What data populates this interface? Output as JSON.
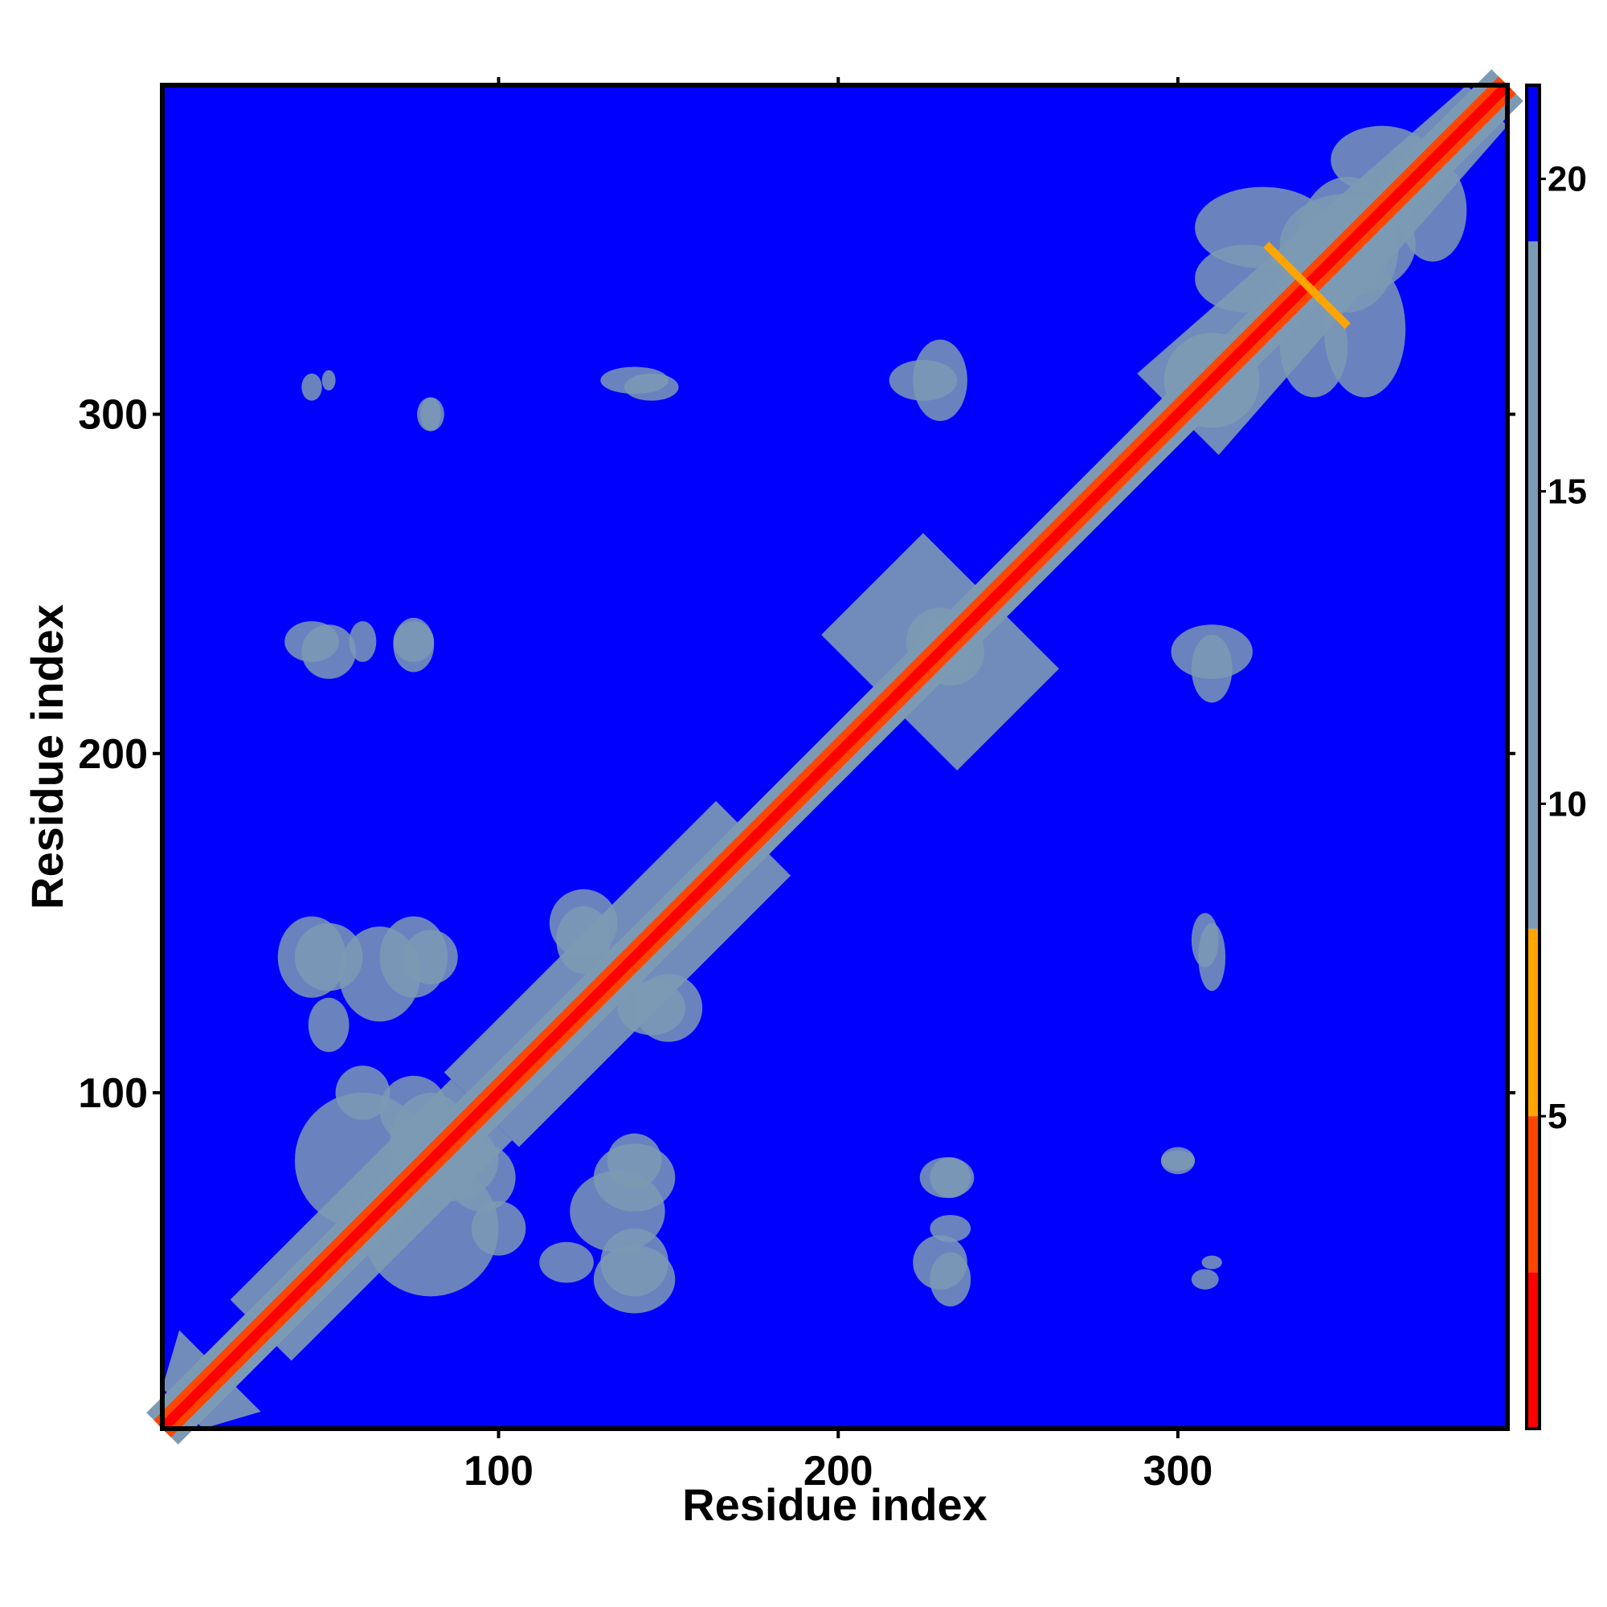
{
  "chart_data": {
    "type": "heatmap",
    "title": "",
    "xlabel": "Residue index",
    "ylabel": "Residue index",
    "xlim": [
      1,
      397
    ],
    "ylim": [
      1,
      397
    ],
    "x_ticks": [
      100,
      200,
      300
    ],
    "y_ticks": [
      100,
      200,
      300
    ],
    "grid": false,
    "colorbar": {
      "range": [
        0,
        21.5
      ],
      "ticks": [
        5,
        10,
        15,
        20
      ],
      "position": "right",
      "colors": [
        "#ff0000",
        "#ff4500",
        "#ffa500",
        "#7d9ab4",
        "#0000ff"
      ]
    },
    "background_value": 21,
    "diagonal": {
      "core_value": 1,
      "inner_value": 3,
      "shoulder_value": 9,
      "half_width": 6
    },
    "diagonal_segments": [
      {
        "from": 1,
        "to": 18,
        "half_width": 12
      },
      {
        "from": 30,
        "to": 95,
        "half_width": 9
      },
      {
        "from": 95,
        "to": 175,
        "half_width": 11
      },
      {
        "from": 215,
        "to": 245,
        "half_width": 20
      },
      {
        "from": 300,
        "to": 397,
        "half_width": 12
      }
    ],
    "contact_clusters": [
      {
        "x": 45,
        "y": 140,
        "rx": 10,
        "ry": 12,
        "value": 16
      },
      {
        "x": 65,
        "y": 135,
        "rx": 12,
        "ry": 14,
        "value": 16
      },
      {
        "x": 80,
        "y": 140,
        "rx": 8,
        "ry": 8,
        "value": 16
      },
      {
        "x": 60,
        "y": 80,
        "rx": 20,
        "ry": 20,
        "value": 14
      },
      {
        "x": 80,
        "y": 85,
        "rx": 12,
        "ry": 15,
        "value": 14
      },
      {
        "x": 95,
        "y": 75,
        "rx": 10,
        "ry": 10,
        "value": 15
      },
      {
        "x": 100,
        "y": 60,
        "rx": 8,
        "ry": 8,
        "value": 15
      },
      {
        "x": 120,
        "y": 50,
        "rx": 8,
        "ry": 6,
        "value": 17
      },
      {
        "x": 140,
        "y": 50,
        "rx": 10,
        "ry": 10,
        "value": 17
      },
      {
        "x": 140,
        "y": 75,
        "rx": 12,
        "ry": 10,
        "value": 17
      },
      {
        "x": 145,
        "y": 125,
        "rx": 10,
        "ry": 8,
        "value": 16
      },
      {
        "x": 125,
        "y": 150,
        "rx": 10,
        "ry": 10,
        "value": 16
      },
      {
        "x": 232,
        "y": 75,
        "rx": 8,
        "ry": 6,
        "value": 17
      },
      {
        "x": 230,
        "y": 50,
        "rx": 8,
        "ry": 8,
        "value": 17
      },
      {
        "x": 225,
        "y": 310,
        "rx": 10,
        "ry": 6,
        "value": 17
      },
      {
        "x": 230,
        "y": 233,
        "rx": 10,
        "ry": 10,
        "value": 14
      },
      {
        "x": 45,
        "y": 233,
        "rx": 8,
        "ry": 6,
        "value": 17
      },
      {
        "x": 60,
        "y": 233,
        "rx": 4,
        "ry": 6,
        "value": 17
      },
      {
        "x": 75,
        "y": 233,
        "rx": 6,
        "ry": 6,
        "value": 17
      },
      {
        "x": 310,
        "y": 230,
        "rx": 12,
        "ry": 8,
        "value": 17
      },
      {
        "x": 300,
        "y": 80,
        "rx": 5,
        "ry": 3,
        "value": 16
      },
      {
        "x": 310,
        "y": 50,
        "rx": 3,
        "ry": 2,
        "value": 16
      },
      {
        "x": 310,
        "y": 140,
        "rx": 4,
        "ry": 10,
        "value": 17
      },
      {
        "x": 80,
        "y": 300,
        "rx": 4,
        "ry": 5,
        "value": 16
      },
      {
        "x": 45,
        "y": 308,
        "rx": 3,
        "ry": 4,
        "value": 16
      },
      {
        "x": 145,
        "y": 308,
        "rx": 8,
        "ry": 4,
        "value": 17
      },
      {
        "x": 310,
        "y": 310,
        "rx": 14,
        "ry": 14,
        "value": 14
      },
      {
        "x": 325,
        "y": 355,
        "rx": 20,
        "ry": 12,
        "value": 15
      },
      {
        "x": 350,
        "y": 350,
        "rx": 20,
        "ry": 15,
        "value": 15
      },
      {
        "x": 360,
        "y": 375,
        "rx": 15,
        "ry": 10,
        "value": 15
      },
      {
        "x": 340,
        "y": 320,
        "rx": 10,
        "ry": 15,
        "value": 16
      }
    ],
    "cross_feature": {
      "x": 338,
      "y": 338,
      "arm": 12,
      "value": 6
    }
  }
}
